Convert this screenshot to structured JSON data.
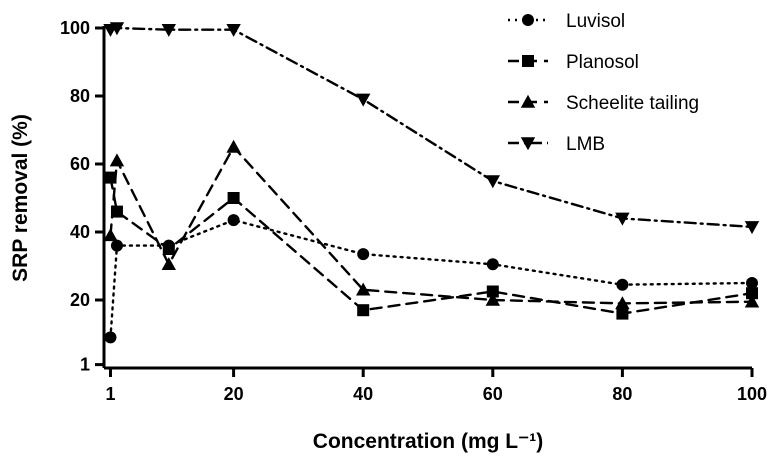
{
  "chart_data": {
    "type": "line",
    "title": "",
    "xlabel": "Concentration (mg L⁻¹)",
    "ylabel": "SRP removal (%)",
    "xlim": [
      0,
      100
    ],
    "ylim": [
      0,
      100
    ],
    "x_ticks": [
      1,
      20,
      40,
      60,
      80,
      100
    ],
    "y_ticks": [
      1,
      20,
      40,
      60,
      80,
      100
    ],
    "grid": false,
    "legend_position": "top-right",
    "x": [
      1,
      2,
      10,
      20,
      40,
      60,
      80,
      100
    ],
    "series": [
      {
        "name": "Luvisol",
        "marker": "circle",
        "dash": "dot",
        "values": [
          9,
          36,
          36,
          43.5,
          33.5,
          30.5,
          24.5,
          25
        ]
      },
      {
        "name": "Planosol",
        "marker": "square",
        "dash": "dash",
        "values": [
          56,
          46,
          35,
          50,
          17,
          22.5,
          16,
          22
        ]
      },
      {
        "name": "Scheelite tailing",
        "marker": "triangle-up",
        "dash": "dash",
        "values": [
          39,
          61,
          30.5,
          65,
          23,
          20,
          19,
          19.5
        ]
      },
      {
        "name": "LMB",
        "marker": "triangle-down",
        "dash": "dashdot",
        "values": [
          99.5,
          100,
          99.5,
          99.5,
          79,
          55,
          44,
          41.5
        ]
      }
    ]
  }
}
